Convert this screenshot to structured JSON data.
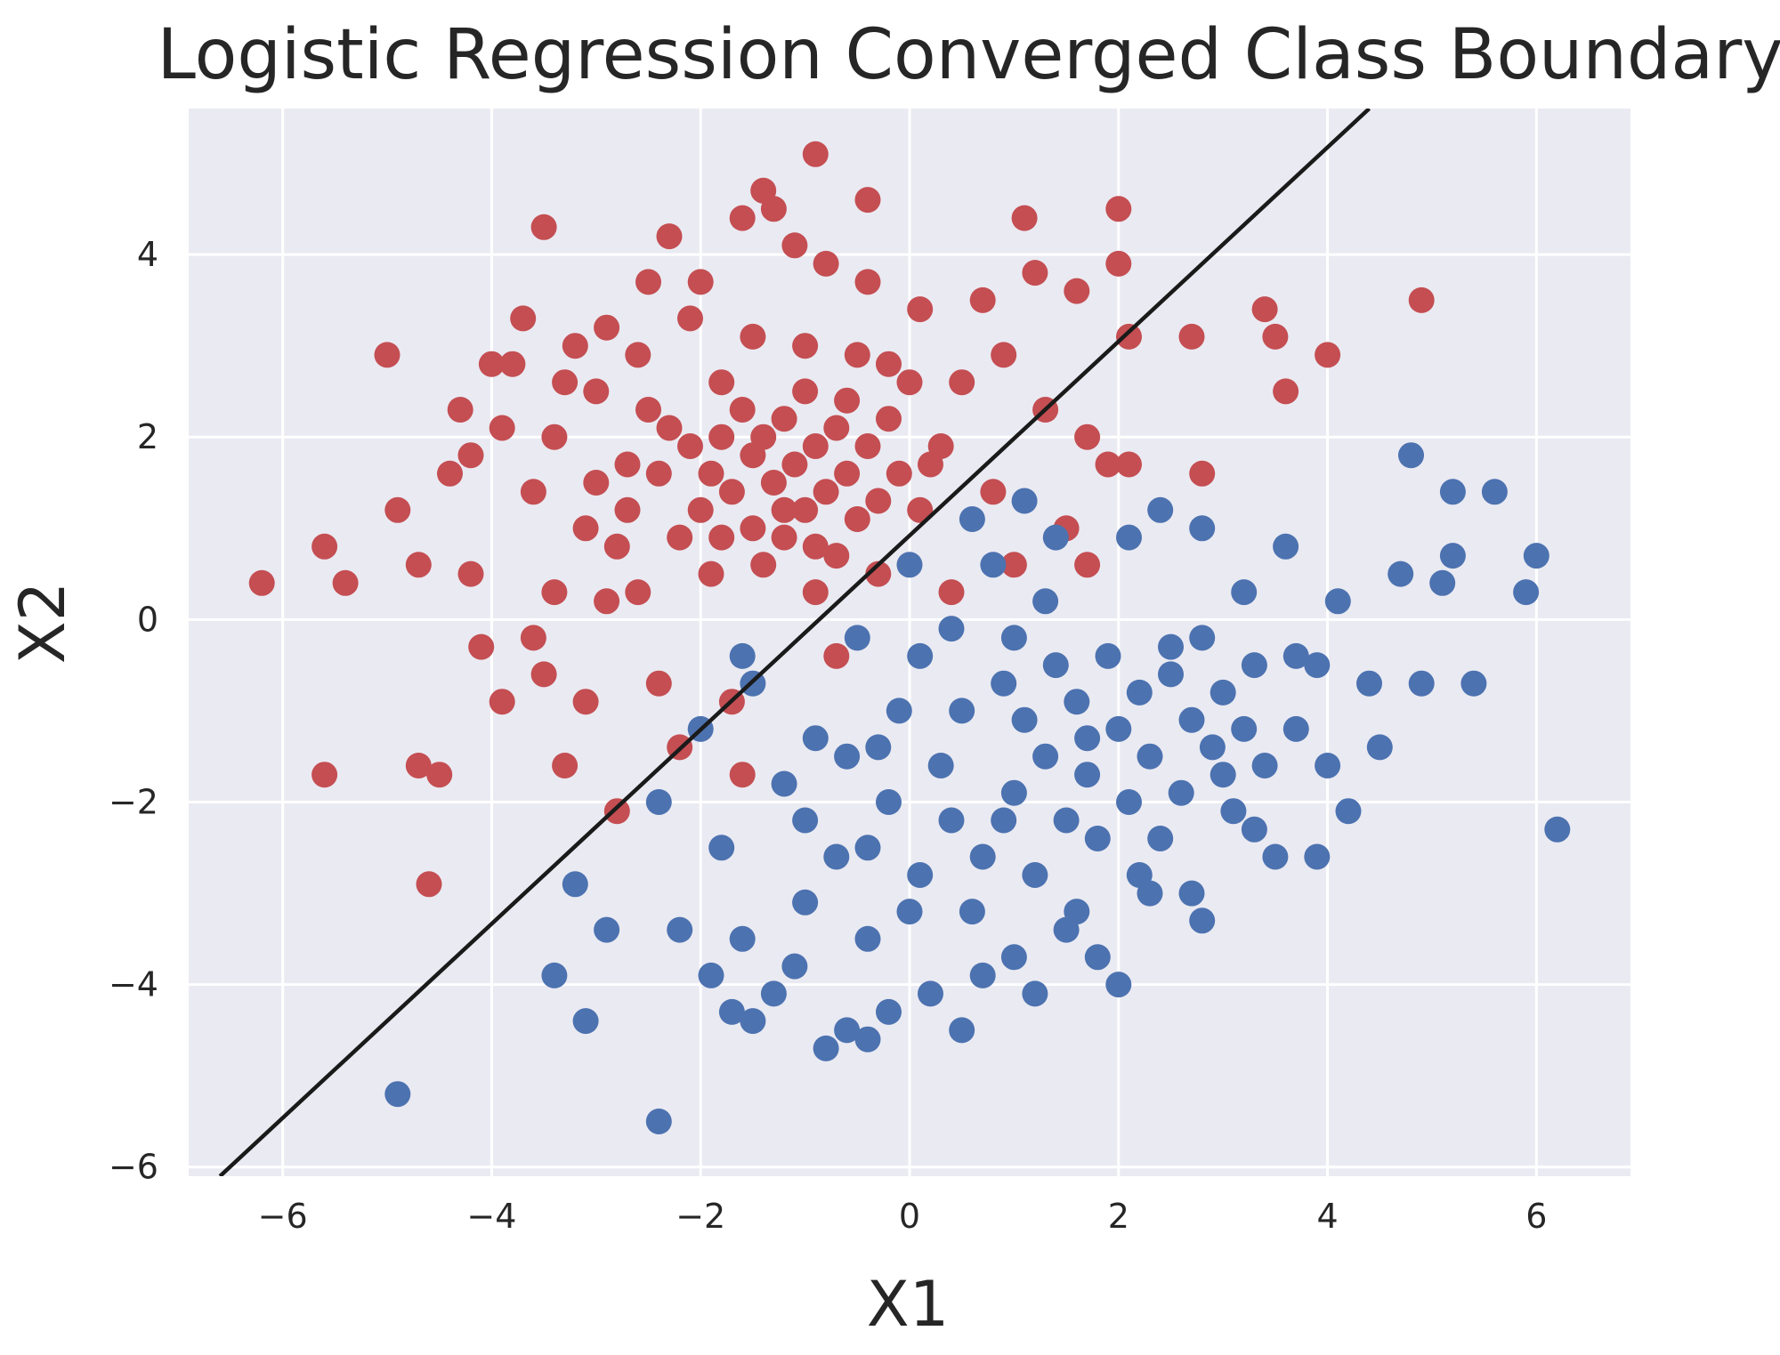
{
  "chart_data": {
    "type": "scatter",
    "title": "Logistic Regression Converged Class Boundary",
    "xlabel": "X1",
    "ylabel": "X2",
    "xlim": [
      -6.9,
      6.9
    ],
    "ylim": [
      -6.1,
      5.6
    ],
    "xticks": [
      -6,
      -4,
      -2,
      0,
      2,
      4,
      6
    ],
    "yticks": [
      -6,
      -4,
      -2,
      0,
      2,
      4
    ],
    "xtick_labels": [
      "−6",
      "−4",
      "−2",
      "0",
      "2",
      "4",
      "6"
    ],
    "ytick_labels": [
      "−6",
      "−4",
      "−2",
      "0",
      "2",
      "4"
    ],
    "grid": true,
    "background": "#eaeaf2",
    "boundary_line": {
      "color": "#1a1a1a",
      "points": [
        [
          -6.6,
          -6.1
        ],
        [
          4.4,
          5.6
        ]
      ]
    },
    "series": [
      {
        "color": "#c44e52",
        "points": [
          [
            -6.2,
            0.4
          ],
          [
            -5.6,
            0.8
          ],
          [
            -5.4,
            0.4
          ],
          [
            -5.6,
            -1.7
          ],
          [
            -4.9,
            1.2
          ],
          [
            -5.0,
            2.9
          ],
          [
            -4.7,
            0.6
          ],
          [
            -4.7,
            -1.6
          ],
          [
            -4.6,
            -2.9
          ],
          [
            -4.5,
            -1.7
          ],
          [
            -4.4,
            1.6
          ],
          [
            -4.3,
            2.3
          ],
          [
            -4.2,
            1.8
          ],
          [
            -4.2,
            0.5
          ],
          [
            -4.1,
            -0.3
          ],
          [
            -4.0,
            2.8
          ],
          [
            -3.9,
            2.1
          ],
          [
            -3.9,
            -0.9
          ],
          [
            -3.8,
            2.8
          ],
          [
            -3.7,
            3.3
          ],
          [
            -3.6,
            1.4
          ],
          [
            -3.5,
            4.3
          ],
          [
            -3.5,
            -0.6
          ],
          [
            -3.4,
            2.0
          ],
          [
            -3.4,
            0.3
          ],
          [
            -3.3,
            -1.6
          ],
          [
            -3.2,
            3.0
          ],
          [
            -3.1,
            1.0
          ],
          [
            -3.1,
            -0.9
          ],
          [
            -3.0,
            2.5
          ],
          [
            -2.9,
            3.2
          ],
          [
            -2.8,
            0.8
          ],
          [
            -2.8,
            -2.1
          ],
          [
            -2.7,
            1.7
          ],
          [
            -2.6,
            2.9
          ],
          [
            -2.5,
            3.7
          ],
          [
            -2.4,
            -0.7
          ],
          [
            -2.3,
            4.2
          ],
          [
            -2.3,
            2.1
          ],
          [
            -2.2,
            -1.4
          ],
          [
            -2.1,
            3.3
          ],
          [
            -2.0,
            3.7
          ],
          [
            -1.9,
            0.5
          ],
          [
            -1.8,
            2.6
          ],
          [
            -1.7,
            -0.9
          ],
          [
            -1.6,
            4.4
          ],
          [
            -1.6,
            -1.7
          ],
          [
            -1.5,
            3.1
          ],
          [
            -1.4,
            4.7
          ],
          [
            -1.4,
            2.0
          ],
          [
            -1.3,
            4.5
          ],
          [
            -1.2,
            1.2
          ],
          [
            -1.1,
            4.1
          ],
          [
            -1.0,
            3.0
          ],
          [
            -0.9,
            5.1
          ],
          [
            -0.9,
            0.3
          ],
          [
            -0.8,
            3.9
          ],
          [
            -0.7,
            -0.4
          ],
          [
            -0.6,
            2.4
          ],
          [
            -0.4,
            4.6
          ],
          [
            -0.4,
            3.7
          ],
          [
            -0.3,
            0.5
          ],
          [
            -0.2,
            2.8
          ],
          [
            0.1,
            3.4
          ],
          [
            0.2,
            1.7
          ],
          [
            0.4,
            0.3
          ],
          [
            0.5,
            2.6
          ],
          [
            0.7,
            3.5
          ],
          [
            0.8,
            1.4
          ],
          [
            0.9,
            2.9
          ],
          [
            1.0,
            0.6
          ],
          [
            1.1,
            4.4
          ],
          [
            1.2,
            3.8
          ],
          [
            1.3,
            2.3
          ],
          [
            1.5,
            1.0
          ],
          [
            1.6,
            3.6
          ],
          [
            1.7,
            2.0
          ],
          [
            1.7,
            0.6
          ],
          [
            1.9,
            1.7
          ],
          [
            2.0,
            3.9
          ],
          [
            2.0,
            4.5
          ],
          [
            2.1,
            1.7
          ],
          [
            2.1,
            3.1
          ],
          [
            2.7,
            3.1
          ],
          [
            2.8,
            1.6
          ],
          [
            3.4,
            3.4
          ],
          [
            3.5,
            3.1
          ],
          [
            3.6,
            2.5
          ],
          [
            4.0,
            2.9
          ],
          [
            4.9,
            3.5
          ],
          [
            -3.0,
            1.5
          ],
          [
            -2.7,
            1.2
          ],
          [
            -2.6,
            0.3
          ],
          [
            -2.4,
            1.6
          ],
          [
            -2.2,
            0.9
          ],
          [
            -2.1,
            1.9
          ],
          [
            -2.0,
            1.2
          ],
          [
            -1.9,
            1.6
          ],
          [
            -1.8,
            0.9
          ],
          [
            -1.8,
            2.0
          ],
          [
            -1.7,
            1.4
          ],
          [
            -1.6,
            2.3
          ],
          [
            -1.5,
            1.0
          ],
          [
            -1.5,
            1.8
          ],
          [
            -1.4,
            0.6
          ],
          [
            -1.3,
            1.5
          ],
          [
            -1.2,
            2.2
          ],
          [
            -1.2,
            0.9
          ],
          [
            -1.1,
            1.7
          ],
          [
            -1.0,
            1.2
          ],
          [
            -1.0,
            2.5
          ],
          [
            -0.9,
            0.8
          ],
          [
            -0.9,
            1.9
          ],
          [
            -0.8,
            1.4
          ],
          [
            -0.7,
            2.1
          ],
          [
            -0.7,
            0.7
          ],
          [
            -0.6,
            1.6
          ],
          [
            -0.5,
            2.9
          ],
          [
            -0.5,
            1.1
          ],
          [
            -0.4,
            1.9
          ],
          [
            -0.3,
            1.3
          ],
          [
            -0.2,
            2.2
          ],
          [
            -0.1,
            1.6
          ],
          [
            0.0,
            2.6
          ],
          [
            0.1,
            1.2
          ],
          [
            0.3,
            1.9
          ],
          [
            -2.9,
            0.2
          ],
          [
            -3.3,
            2.6
          ],
          [
            -3.6,
            -0.2
          ],
          [
            -2.5,
            2.3
          ]
        ]
      },
      {
        "color": "#4c72b0",
        "points": [
          [
            -4.9,
            -5.2
          ],
          [
            -3.4,
            -3.9
          ],
          [
            -3.1,
            -4.4
          ],
          [
            -3.2,
            -2.9
          ],
          [
            -2.9,
            -3.4
          ],
          [
            -2.4,
            -5.5
          ],
          [
            -2.4,
            -2.0
          ],
          [
            -2.2,
            -3.4
          ],
          [
            -2.0,
            -1.2
          ],
          [
            -1.9,
            -3.9
          ],
          [
            -1.8,
            -2.5
          ],
          [
            -1.7,
            -4.3
          ],
          [
            -1.6,
            -0.4
          ],
          [
            -1.6,
            -3.5
          ],
          [
            -1.5,
            -0.7
          ],
          [
            -1.5,
            -4.4
          ],
          [
            -1.3,
            -4.1
          ],
          [
            -1.2,
            -1.8
          ],
          [
            -1.1,
            -3.8
          ],
          [
            -1.0,
            -3.1
          ],
          [
            -0.8,
            -4.7
          ],
          [
            -0.7,
            -2.6
          ],
          [
            -0.6,
            -4.5
          ],
          [
            -0.5,
            -0.2
          ],
          [
            -0.4,
            -3.5
          ],
          [
            -0.4,
            -4.6
          ],
          [
            -0.3,
            -1.4
          ],
          [
            -0.2,
            -4.3
          ],
          [
            0.0,
            0.6
          ],
          [
            0.1,
            -2.8
          ],
          [
            0.2,
            -4.1
          ],
          [
            0.4,
            -0.1
          ],
          [
            0.5,
            -4.5
          ],
          [
            0.6,
            1.1
          ],
          [
            0.7,
            -3.9
          ],
          [
            0.8,
            0.6
          ],
          [
            0.9,
            -2.2
          ],
          [
            1.0,
            -3.7
          ],
          [
            1.1,
            1.3
          ],
          [
            1.2,
            -4.1
          ],
          [
            1.3,
            0.2
          ],
          [
            1.4,
            0.9
          ],
          [
            1.6,
            -3.2
          ],
          [
            1.7,
            -1.3
          ],
          [
            1.8,
            -3.7
          ],
          [
            2.0,
            -4.0
          ],
          [
            2.1,
            0.9
          ],
          [
            2.2,
            -2.8
          ],
          [
            2.4,
            1.2
          ],
          [
            2.5,
            -0.3
          ],
          [
            2.7,
            -3.0
          ],
          [
            2.8,
            1.0
          ],
          [
            2.8,
            -3.3
          ],
          [
            3.0,
            -1.7
          ],
          [
            3.2,
            0.3
          ],
          [
            3.3,
            -2.3
          ],
          [
            3.5,
            -2.6
          ],
          [
            3.6,
            0.8
          ],
          [
            3.7,
            -0.4
          ],
          [
            3.9,
            -2.6
          ],
          [
            4.0,
            -1.6
          ],
          [
            4.1,
            0.2
          ],
          [
            4.2,
            -2.1
          ],
          [
            4.4,
            -0.7
          ],
          [
            4.5,
            -1.4
          ],
          [
            4.7,
            0.5
          ],
          [
            4.8,
            1.8
          ],
          [
            4.9,
            -0.7
          ],
          [
            5.1,
            0.4
          ],
          [
            5.2,
            0.7
          ],
          [
            5.2,
            1.4
          ],
          [
            5.4,
            -0.7
          ],
          [
            5.6,
            1.4
          ],
          [
            5.9,
            0.3
          ],
          [
            6.0,
            0.7
          ],
          [
            6.2,
            -2.3
          ],
          [
            0.3,
            -1.6
          ],
          [
            0.5,
            -1.0
          ],
          [
            0.7,
            -2.6
          ],
          [
            0.9,
            -0.7
          ],
          [
            1.0,
            -1.9
          ],
          [
            1.1,
            -1.1
          ],
          [
            1.2,
            -2.8
          ],
          [
            1.3,
            -1.5
          ],
          [
            1.4,
            -0.5
          ],
          [
            1.5,
            -2.2
          ],
          [
            1.6,
            -0.9
          ],
          [
            1.7,
            -1.7
          ],
          [
            1.8,
            -2.4
          ],
          [
            1.9,
            -0.4
          ],
          [
            2.0,
            -1.2
          ],
          [
            2.1,
            -2.0
          ],
          [
            2.2,
            -0.8
          ],
          [
            2.3,
            -1.5
          ],
          [
            2.4,
            -2.4
          ],
          [
            2.5,
            -0.6
          ],
          [
            2.6,
            -1.9
          ],
          [
            2.7,
            -1.1
          ],
          [
            2.8,
            -0.2
          ],
          [
            2.9,
            -1.4
          ],
          [
            3.0,
            -0.8
          ],
          [
            3.1,
            -2.1
          ],
          [
            3.2,
            -1.2
          ],
          [
            3.3,
            -0.5
          ],
          [
            3.4,
            -1.6
          ],
          [
            -0.1,
            -1.0
          ],
          [
            -0.2,
            -2.0
          ],
          [
            0.0,
            -3.2
          ],
          [
            -0.4,
            -2.5
          ],
          [
            -0.6,
            -1.5
          ],
          [
            0.1,
            -0.4
          ],
          [
            0.6,
            -3.2
          ],
          [
            1.0,
            -0.2
          ],
          [
            1.5,
            -3.4
          ],
          [
            2.3,
            -3.0
          ],
          [
            3.7,
            -1.2
          ],
          [
            3.9,
            -0.5
          ],
          [
            -0.9,
            -1.3
          ],
          [
            -1.0,
            -2.2
          ],
          [
            0.4,
            -2.2
          ]
        ]
      }
    ]
  }
}
